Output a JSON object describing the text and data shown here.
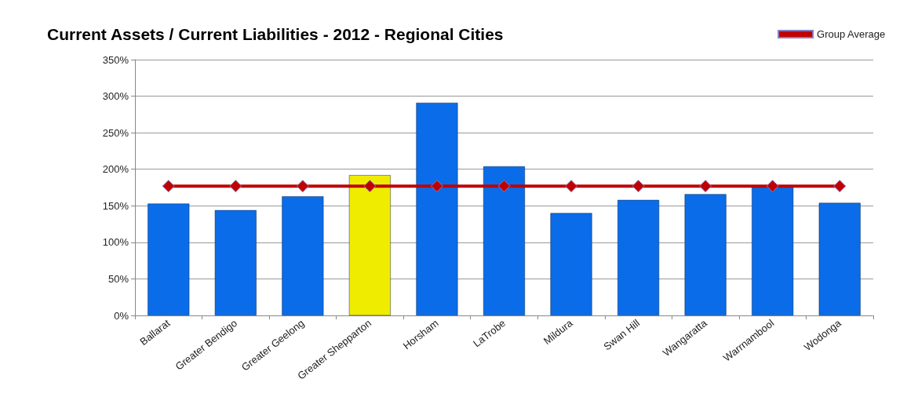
{
  "chart_data": {
    "type": "bar",
    "title": "Current Assets / Current Liabilities - 2012 - Regional Cities",
    "categories": [
      "Ballarat",
      "Greater Bendigo",
      "Greater Geelong",
      "Greater Shepparton",
      "Horsham",
      "LaTrobe",
      "Mildura",
      "Swan Hill",
      "Wangaratta",
      "Warrnambool",
      "Wodonga"
    ],
    "series": [
      {
        "color": "#0a6ce8",
        "colors": [
          "#0a6ce8",
          "#0a6ce8",
          "#0a6ce8",
          "#f0ec00",
          "#0a6ce8",
          "#0a6ce8",
          "#0a6ce8",
          "#0a6ce8",
          "#0a6ce8",
          "#0a6ce8",
          "#0a6ce8"
        ],
        "values": [
          153,
          144,
          163,
          192,
          291,
          204,
          140,
          158,
          166,
          176,
          154
        ]
      },
      {
        "type": "line",
        "name": "Group Average",
        "color": "#c00000",
        "marker": "diamond",
        "values": [
          177,
          177,
          177,
          177,
          177,
          177,
          177,
          177,
          177,
          177,
          177
        ]
      }
    ],
    "ylim": [
      0,
      350
    ],
    "yticks": [
      {
        "value": 0,
        "label": "0%"
      },
      {
        "value": 50,
        "label": "50%"
      },
      {
        "value": 100,
        "label": "100%"
      },
      {
        "value": 150,
        "label": "150%"
      },
      {
        "value": 200,
        "label": "200%"
      },
      {
        "value": 250,
        "label": "250%"
      },
      {
        "value": 300,
        "label": "300%"
      },
      {
        "value": 350,
        "label": "350%"
      }
    ],
    "grid": "y",
    "legend": "top right"
  }
}
